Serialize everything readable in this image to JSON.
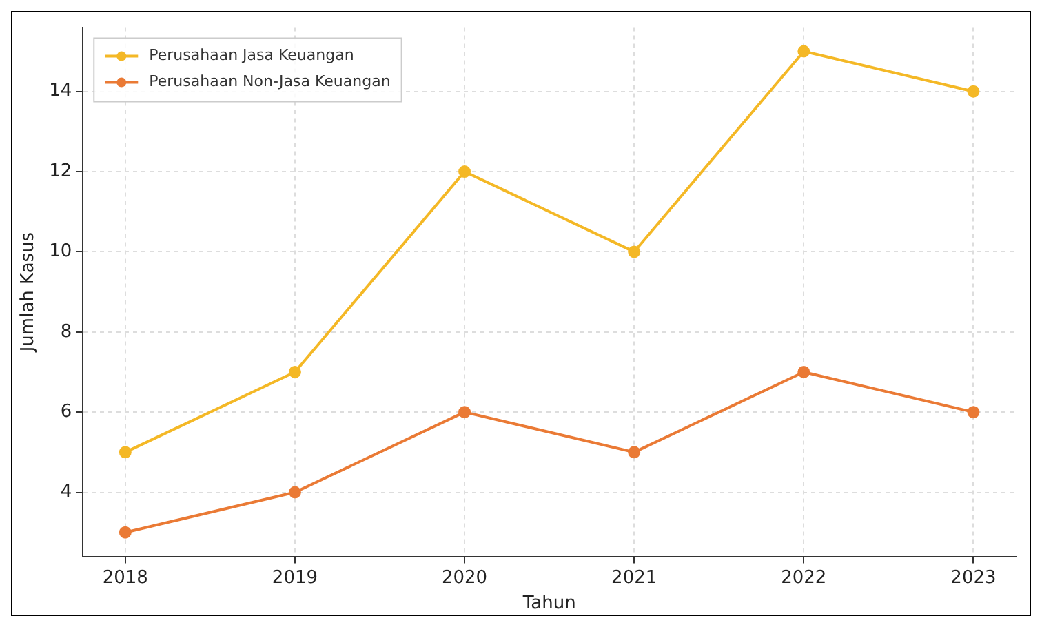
{
  "chart_data": {
    "type": "line",
    "xlabel": "Tahun",
    "ylabel": "Jumlah Kasus",
    "x": [
      2018,
      2019,
      2020,
      2021,
      2022,
      2023
    ],
    "xlim": [
      2017.75,
      2023.25
    ],
    "xticks": [
      2018,
      2019,
      2020,
      2021,
      2022,
      2023
    ],
    "ylim": [
      2.4,
      15.6
    ],
    "yticks": [
      4,
      6,
      8,
      10,
      12,
      14
    ],
    "grid": true,
    "legend": "top left",
    "marker": "circle",
    "line_style": "solid",
    "series": [
      {
        "name": "Perusahaan Jasa Keuangan",
        "color": "#f4b826",
        "values": [
          5,
          7,
          12,
          10,
          15,
          14
        ]
      },
      {
        "name": "Perusahaan Non-Jasa Keuangan",
        "color": "#ea7a35",
        "values": [
          3,
          4,
          6,
          5,
          7,
          6
        ]
      }
    ]
  }
}
